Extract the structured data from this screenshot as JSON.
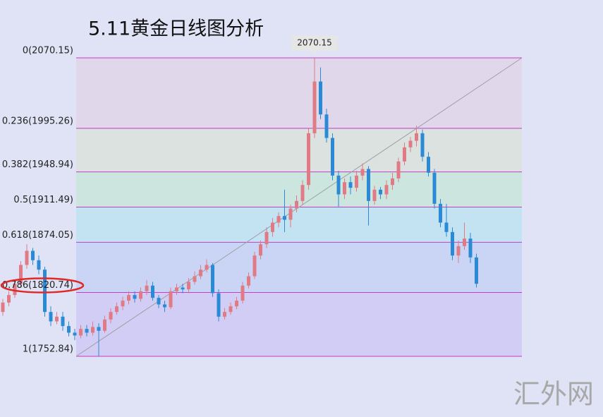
{
  "chart_data": {
    "type": "candlestick",
    "title": "5.11黄金日线图分析",
    "watermark": "汇外网",
    "ylim": [
      1752.84,
      2070.15
    ],
    "up_color": "#e07a84",
    "down_color": "#2b8ad6",
    "level_color": "#c43cc8",
    "fib_levels": [
      {
        "ratio": 0,
        "price": 2070.15,
        "label": "0(2070.15)"
      },
      {
        "ratio": 0.236,
        "price": 1995.26,
        "label": "0.236(1995.26)"
      },
      {
        "ratio": 0.382,
        "price": 1948.94,
        "label": "0.382(1948.94)"
      },
      {
        "ratio": 0.5,
        "price": 1911.49,
        "label": "0.5(1911.49)"
      },
      {
        "ratio": 0.618,
        "price": 1874.05,
        "label": "0.618(1874.05)"
      },
      {
        "ratio": 0.786,
        "price": 1820.74,
        "label": "0.786(1820.74)"
      },
      {
        "ratio": 1,
        "price": 1752.84,
        "label": "1(1752.84)"
      }
    ],
    "band_colors": [
      "#e0d8ea",
      "#dbe2df",
      "#cce6df",
      "#c3e2f2",
      "#cad5f6",
      "#d2cdf4"
    ],
    "candles": [
      [
        1800,
        1814,
        1796,
        1810
      ],
      [
        1810,
        1822,
        1806,
        1818
      ],
      [
        1818,
        1834,
        1815,
        1830
      ],
      [
        1830,
        1854,
        1826,
        1850
      ],
      [
        1850,
        1872,
        1846,
        1865
      ],
      [
        1865,
        1868,
        1850,
        1855
      ],
      [
        1855,
        1860,
        1840,
        1845
      ],
      [
        1845,
        1848,
        1795,
        1800
      ],
      [
        1800,
        1806,
        1785,
        1790
      ],
      [
        1790,
        1800,
        1787,
        1795
      ],
      [
        1795,
        1800,
        1780,
        1785
      ],
      [
        1785,
        1790,
        1774,
        1778
      ],
      [
        1778,
        1782,
        1770,
        1775
      ],
      [
        1775,
        1786,
        1772,
        1782
      ],
      [
        1782,
        1786,
        1774,
        1778
      ],
      [
        1778,
        1790,
        1775,
        1784
      ],
      [
        1784,
        1788,
        1753,
        1780
      ],
      [
        1780,
        1796,
        1778,
        1792
      ],
      [
        1792,
        1804,
        1788,
        1800
      ],
      [
        1800,
        1810,
        1797,
        1806
      ],
      [
        1806,
        1816,
        1802,
        1812
      ],
      [
        1812,
        1822,
        1808,
        1818
      ],
      [
        1818,
        1822,
        1810,
        1814
      ],
      [
        1814,
        1826,
        1811,
        1822
      ],
      [
        1822,
        1834,
        1818,
        1828
      ],
      [
        1828,
        1832,
        1812,
        1815
      ],
      [
        1815,
        1818,
        1804,
        1808
      ],
      [
        1808,
        1812,
        1800,
        1805
      ],
      [
        1805,
        1826,
        1803,
        1822
      ],
      [
        1822,
        1830,
        1818,
        1826
      ],
      [
        1826,
        1830,
        1820,
        1824
      ],
      [
        1824,
        1836,
        1820,
        1832
      ],
      [
        1832,
        1843,
        1829,
        1838
      ],
      [
        1838,
        1850,
        1835,
        1845
      ],
      [
        1845,
        1856,
        1842,
        1850
      ],
      [
        1850,
        1852,
        1816,
        1820
      ],
      [
        1820,
        1824,
        1790,
        1795
      ],
      [
        1795,
        1804,
        1792,
        1800
      ],
      [
        1800,
        1810,
        1797,
        1806
      ],
      [
        1806,
        1816,
        1803,
        1812
      ],
      [
        1812,
        1832,
        1809,
        1828
      ],
      [
        1828,
        1842,
        1825,
        1838
      ],
      [
        1838,
        1864,
        1835,
        1860
      ],
      [
        1860,
        1876,
        1856,
        1872
      ],
      [
        1872,
        1890,
        1868,
        1885
      ],
      [
        1885,
        1900,
        1880,
        1895
      ],
      [
        1895,
        1906,
        1890,
        1902
      ],
      [
        1902,
        1930,
        1885,
        1898
      ],
      [
        1898,
        1914,
        1890,
        1910
      ],
      [
        1910,
        1924,
        1906,
        1918
      ],
      [
        1918,
        1940,
        1914,
        1935
      ],
      [
        1935,
        1995,
        1930,
        1990
      ],
      [
        1990,
        2070.15,
        1985,
        2045
      ],
      [
        2045,
        2060,
        2005,
        2010
      ],
      [
        2010,
        2016,
        1980,
        1985
      ],
      [
        1985,
        1990,
        1940,
        1945
      ],
      [
        1945,
        1950,
        1912,
        1925
      ],
      [
        1925,
        1942,
        1920,
        1938
      ],
      [
        1938,
        1944,
        1925,
        1932
      ],
      [
        1932,
        1950,
        1928,
        1945
      ],
      [
        1945,
        1958,
        1940,
        1952
      ],
      [
        1952,
        1955,
        1892,
        1918
      ],
      [
        1918,
        1934,
        1914,
        1930
      ],
      [
        1930,
        1933,
        1920,
        1925
      ],
      [
        1925,
        1940,
        1920,
        1935
      ],
      [
        1935,
        1948,
        1930,
        1942
      ],
      [
        1942,
        1964,
        1938,
        1960
      ],
      [
        1960,
        1980,
        1956,
        1975
      ],
      [
        1975,
        1986,
        1970,
        1982
      ],
      [
        1982,
        1998,
        1976,
        1990
      ],
      [
        1990,
        1994,
        1960,
        1965
      ],
      [
        1965,
        1970,
        1944,
        1948
      ],
      [
        1948,
        1952,
        1910,
        1915
      ],
      [
        1915,
        1920,
        1890,
        1895
      ],
      [
        1895,
        1915,
        1880,
        1885
      ],
      [
        1885,
        1890,
        1855,
        1860
      ],
      [
        1860,
        1876,
        1852,
        1870
      ],
      [
        1870,
        1895,
        1866,
        1878
      ],
      [
        1878,
        1884,
        1852,
        1858
      ],
      [
        1858,
        1862,
        1826,
        1830
      ]
    ]
  }
}
